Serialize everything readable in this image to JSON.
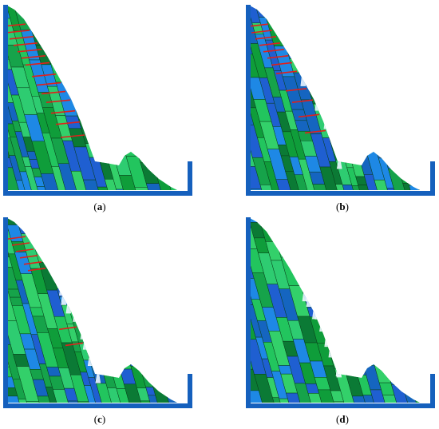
{
  "figure": {
    "panels": [
      {
        "id": "a",
        "caption_open": "(",
        "caption_letter": "a",
        "caption_close": ")",
        "failure_stage": 0
      },
      {
        "id": "b",
        "caption_open": "(",
        "caption_letter": "b",
        "caption_close": ")",
        "failure_stage": 1
      },
      {
        "id": "c",
        "caption_open": "(",
        "caption_letter": "c",
        "caption_close": ")",
        "failure_stage": 2
      },
      {
        "id": "d",
        "caption_open": "(",
        "caption_letter": "d",
        "caption_close": ")",
        "failure_stage": 3
      }
    ],
    "colors": {
      "frame": "#1560bd",
      "block_palette": [
        "#22c55e",
        "#0f9d3a",
        "#16a34a",
        "#1e88e5",
        "#1565c0",
        "#2ecc71",
        "#0b7a35",
        "#1f5fd1",
        "#33d06a"
      ],
      "block_edge": "#0a3d1a",
      "anchor": "#e0201b",
      "crack": "#e8f4ff"
    }
  }
}
